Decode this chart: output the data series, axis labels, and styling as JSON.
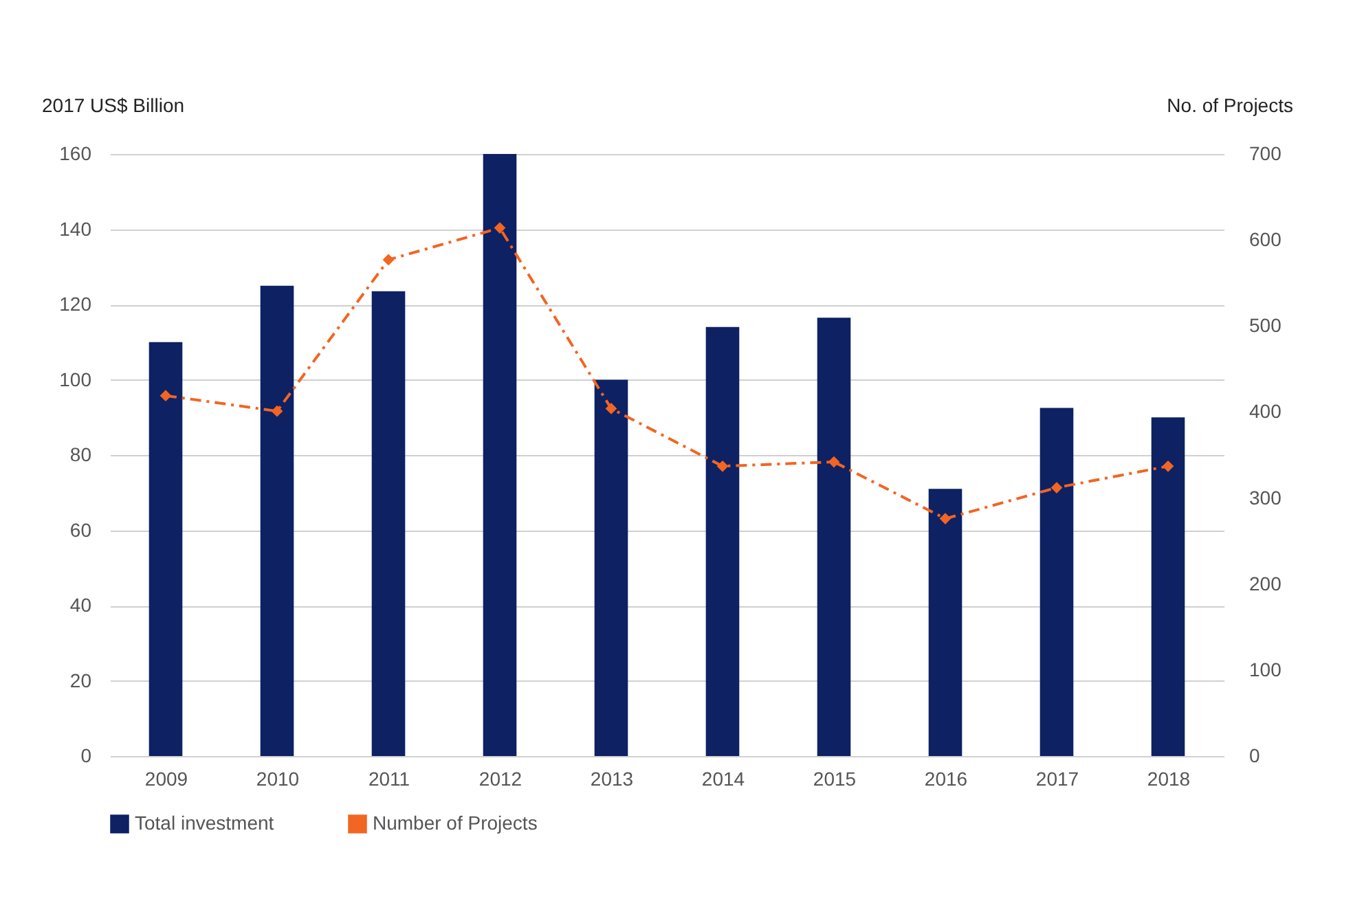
{
  "chart_data": {
    "type": "bar",
    "ylabel": "2017 US$ Billion",
    "y2label": "No. of Projects",
    "categories": [
      "2009",
      "2010",
      "2011",
      "2012",
      "2013",
      "2014",
      "2015",
      "2016",
      "2017",
      "2018"
    ],
    "series": [
      {
        "name": "Total investment",
        "color": "#0d2163",
        "values": [
          110,
          125,
          123.5,
          160,
          100,
          114,
          116.5,
          71,
          92.5,
          90
        ]
      },
      {
        "name": "Number of Projects",
        "type": "line",
        "axis": "y2",
        "color": "#f26522",
        "values": [
          419,
          401,
          577,
          614,
          404,
          337,
          342,
          276,
          312,
          337
        ]
      }
    ],
    "ylim": [
      0,
      160
    ],
    "yticks": [
      0,
      20,
      40,
      60,
      80,
      100,
      120,
      140,
      160
    ],
    "y2lim": [
      0,
      700
    ],
    "y2ticks": [
      0,
      100,
      200,
      300,
      400,
      500,
      600,
      700
    ],
    "grid": "y",
    "legend": "bottom",
    "marker": "diamond",
    "line_style": "dashed"
  }
}
